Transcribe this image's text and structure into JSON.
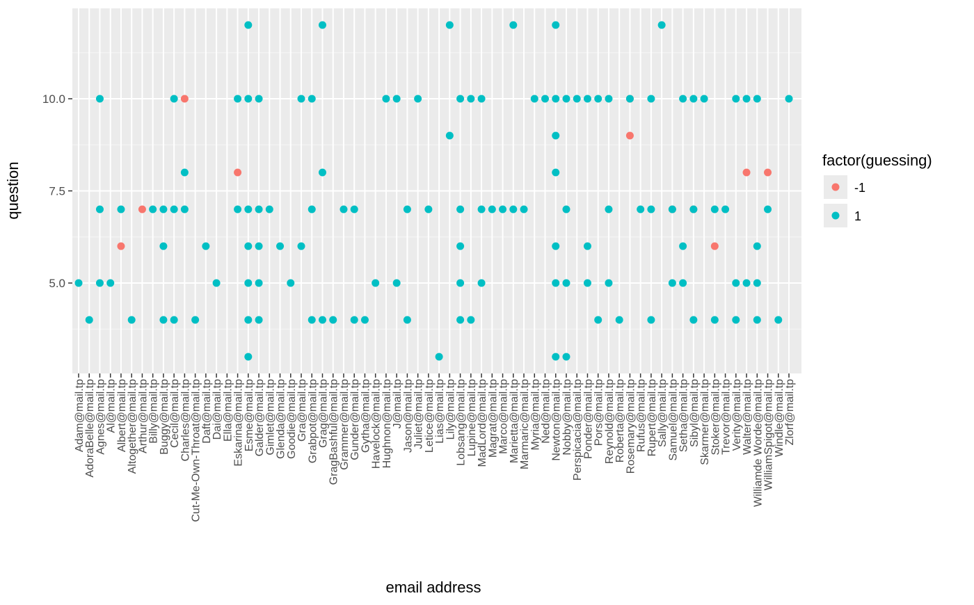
{
  "chart_data": {
    "type": "scatter",
    "xlabel": "email address",
    "ylabel": "question",
    "y_ticks": [
      "5.0",
      "7.5",
      "10.0"
    ],
    "ylim": [
      2.5,
      12.5
    ],
    "grid": true,
    "legend": {
      "title": "factor(guessing)",
      "position": "right",
      "entries": [
        {
          "label": "-1",
          "color": "#F8766D"
        },
        {
          "label": "1",
          "color": "#00BFC4"
        }
      ]
    },
    "categories": [
      "Adam@mail.tp",
      "AdoraBelle@mail.tp",
      "Agnes@mail.tp",
      "Al@mail.tp",
      "Albert@mail.tp",
      "Altogether@mail.tp",
      "Arthur@mail.tp",
      "Billy@mail.tp",
      "Buggy@mail.tp",
      "Cecil@mail.tp",
      "Charles@mail.tp",
      "Cut-Me-Own-Throat@mail.tp",
      "Daft@mail.tp",
      "Dai@mail.tp",
      "Ella@mail.tp",
      "Eskarina@mail.tp",
      "Esme@mail.tp",
      "Galder@mail.tp",
      "Gimlet@mail.tp",
      "Glenda@mail.tp",
      "Goodie@mail.tp",
      "Gra@mail.tp",
      "Grabpot@mail.tp",
      "Grag@mail.tp",
      "GragBashful@mail.tp",
      "Grammer@mail.tp",
      "Gunder@mail.tp",
      "Gytha@mail.tp",
      "Havelock@mail.tp",
      "Hughnon@mail.tp",
      "J@mail.tp",
      "Jason@mail.tp",
      "Juliet@mail.tp",
      "Letice@mail.tp",
      "Lias@mail.tp",
      "Lily@mail.tp",
      "Lobsang@mail.tp",
      "Lupine@mail.tp",
      "MadLord@mail.tp",
      "Magrat@mail.tp",
      "Marco@mail.tp",
      "Marietta@mail.tp",
      "Marmaric@mail.tp",
      "Myria@mail.tp",
      "Ned@mail.tp",
      "Newton@mail.tp",
      "Nobby@mail.tp",
      "Perspicacia@mail.tp",
      "Ponder@mail.tp",
      "Pors@mail.tp",
      "Reynold@mail.tp",
      "Roberta@mail.tp",
      "Rosemary@mail.tp",
      "Rufus@mail.tp",
      "Rupert@mail.tp",
      "Sally@mail.tp",
      "Samuel@mail.tp",
      "Setha@mail.tp",
      "Sibyl@mail.tp",
      "Skarmer@mail.tp",
      "Stoker@mail.tp",
      "Trevor@mail.tp",
      "Verity@mail.tp",
      "Walter@mail.tp",
      "Williamde Worde@mail.tp",
      "WilliamSpigot@mail.tp",
      "Windle@mail.tp",
      "Zlorf@mail.tp"
    ],
    "series": [
      {
        "name": "-1",
        "color": "#F8766D",
        "points": [
          {
            "x": "Albert@mail.tp",
            "y": 6
          },
          {
            "x": "Arthur@mail.tp",
            "y": 7
          },
          {
            "x": "Charles@mail.tp",
            "y": 10
          },
          {
            "x": "Eskarina@mail.tp",
            "y": 8
          },
          {
            "x": "Rosemary@mail.tp",
            "y": 10
          },
          {
            "x": "Rosemary@mail.tp",
            "y": 9
          },
          {
            "x": "Samuel@mail.tp",
            "y": 7
          },
          {
            "x": "Sibyl@mail.tp",
            "y": 7
          },
          {
            "x": "Stoker@mail.tp",
            "y": 6
          },
          {
            "x": "Walter@mail.tp",
            "y": 8
          },
          {
            "x": "WilliamSpigot@mail.tp",
            "y": 8
          }
        ]
      },
      {
        "name": "1",
        "color": "#00BFC4",
        "points": [
          {
            "x": "Adam@mail.tp",
            "y": 5
          },
          {
            "x": "AdoraBelle@mail.tp",
            "y": 4
          },
          {
            "x": "Agnes@mail.tp",
            "y": 10
          },
          {
            "x": "Agnes@mail.tp",
            "y": 7
          },
          {
            "x": "Agnes@mail.tp",
            "y": 5
          },
          {
            "x": "Al@mail.tp",
            "y": 5
          },
          {
            "x": "Albert@mail.tp",
            "y": 7
          },
          {
            "x": "Altogether@mail.tp",
            "y": 4
          },
          {
            "x": "Billy@mail.tp",
            "y": 7
          },
          {
            "x": "Buggy@mail.tp",
            "y": 7
          },
          {
            "x": "Buggy@mail.tp",
            "y": 6
          },
          {
            "x": "Buggy@mail.tp",
            "y": 4
          },
          {
            "x": "Cecil@mail.tp",
            "y": 10
          },
          {
            "x": "Cecil@mail.tp",
            "y": 7
          },
          {
            "x": "Cecil@mail.tp",
            "y": 4
          },
          {
            "x": "Charles@mail.tp",
            "y": 8
          },
          {
            "x": "Charles@mail.tp",
            "y": 7
          },
          {
            "x": "Cut-Me-Own-Throat@mail.tp",
            "y": 4
          },
          {
            "x": "Daft@mail.tp",
            "y": 6
          },
          {
            "x": "Dai@mail.tp",
            "y": 5
          },
          {
            "x": "Eskarina@mail.tp",
            "y": 10
          },
          {
            "x": "Eskarina@mail.tp",
            "y": 7
          },
          {
            "x": "Esme@mail.tp",
            "y": 12
          },
          {
            "x": "Esme@mail.tp",
            "y": 10
          },
          {
            "x": "Esme@mail.tp",
            "y": 7
          },
          {
            "x": "Esme@mail.tp",
            "y": 6
          },
          {
            "x": "Esme@mail.tp",
            "y": 5
          },
          {
            "x": "Esme@mail.tp",
            "y": 4
          },
          {
            "x": "Esme@mail.tp",
            "y": 3
          },
          {
            "x": "Galder@mail.tp",
            "y": 10
          },
          {
            "x": "Galder@mail.tp",
            "y": 7
          },
          {
            "x": "Galder@mail.tp",
            "y": 6
          },
          {
            "x": "Galder@mail.tp",
            "y": 5
          },
          {
            "x": "Galder@mail.tp",
            "y": 4
          },
          {
            "x": "Gimlet@mail.tp",
            "y": 7
          },
          {
            "x": "Glenda@mail.tp",
            "y": 6
          },
          {
            "x": "Goodie@mail.tp",
            "y": 5
          },
          {
            "x": "Gra@mail.tp",
            "y": 10
          },
          {
            "x": "Gra@mail.tp",
            "y": 6
          },
          {
            "x": "Grabpot@mail.tp",
            "y": 10
          },
          {
            "x": "Grabpot@mail.tp",
            "y": 7
          },
          {
            "x": "Grabpot@mail.tp",
            "y": 4
          },
          {
            "x": "Grag@mail.tp",
            "y": 12
          },
          {
            "x": "Grag@mail.tp",
            "y": 8
          },
          {
            "x": "Grag@mail.tp",
            "y": 4
          },
          {
            "x": "GragBashful@mail.tp",
            "y": 4
          },
          {
            "x": "Grammer@mail.tp",
            "y": 7
          },
          {
            "x": "Gunder@mail.tp",
            "y": 7
          },
          {
            "x": "Gunder@mail.tp",
            "y": 4
          },
          {
            "x": "Gytha@mail.tp",
            "y": 4
          },
          {
            "x": "Havelock@mail.tp",
            "y": 5
          },
          {
            "x": "Hughnon@mail.tp",
            "y": 10
          },
          {
            "x": "J@mail.tp",
            "y": 10
          },
          {
            "x": "J@mail.tp",
            "y": 5
          },
          {
            "x": "Jason@mail.tp",
            "y": 7
          },
          {
            "x": "Jason@mail.tp",
            "y": 4
          },
          {
            "x": "Juliet@mail.tp",
            "y": 10
          },
          {
            "x": "Letice@mail.tp",
            "y": 7
          },
          {
            "x": "Lias@mail.tp",
            "y": 3
          },
          {
            "x": "Lily@mail.tp",
            "y": 12
          },
          {
            "x": "Lily@mail.tp",
            "y": 9
          },
          {
            "x": "Lobsang@mail.tp",
            "y": 10
          },
          {
            "x": "Lobsang@mail.tp",
            "y": 7
          },
          {
            "x": "Lobsang@mail.tp",
            "y": 6
          },
          {
            "x": "Lobsang@mail.tp",
            "y": 5
          },
          {
            "x": "Lobsang@mail.tp",
            "y": 4
          },
          {
            "x": "Lupine@mail.tp",
            "y": 10
          },
          {
            "x": "Lupine@mail.tp",
            "y": 4
          },
          {
            "x": "MadLord@mail.tp",
            "y": 10
          },
          {
            "x": "MadLord@mail.tp",
            "y": 7
          },
          {
            "x": "MadLord@mail.tp",
            "y": 5
          },
          {
            "x": "Magrat@mail.tp",
            "y": 7
          },
          {
            "x": "Marco@mail.tp",
            "y": 7
          },
          {
            "x": "Marietta@mail.tp",
            "y": 12
          },
          {
            "x": "Marietta@mail.tp",
            "y": 7
          },
          {
            "x": "Marmaric@mail.tp",
            "y": 7
          },
          {
            "x": "Myria@mail.tp",
            "y": 10
          },
          {
            "x": "Ned@mail.tp",
            "y": 10
          },
          {
            "x": "Newton@mail.tp",
            "y": 10
          },
          {
            "x": "Newton@mail.tp",
            "y": 12
          },
          {
            "x": "Newton@mail.tp",
            "y": 9
          },
          {
            "x": "Newton@mail.tp",
            "y": 8
          },
          {
            "x": "Newton@mail.tp",
            "y": 6
          },
          {
            "x": "Newton@mail.tp",
            "y": 5
          },
          {
            "x": "Newton@mail.tp",
            "y": 3
          },
          {
            "x": "Nobby@mail.tp",
            "y": 10
          },
          {
            "x": "Nobby@mail.tp",
            "y": 7
          },
          {
            "x": "Nobby@mail.tp",
            "y": 5
          },
          {
            "x": "Nobby@mail.tp",
            "y": 3
          },
          {
            "x": "Perspicacia@mail.tp",
            "y": 10
          },
          {
            "x": "Ponder@mail.tp",
            "y": 10
          },
          {
            "x": "Ponder@mail.tp",
            "y": 6
          },
          {
            "x": "Ponder@mail.tp",
            "y": 5
          },
          {
            "x": "Pors@mail.tp",
            "y": 10
          },
          {
            "x": "Pors@mail.tp",
            "y": 4
          },
          {
            "x": "Reynold@mail.tp",
            "y": 10
          },
          {
            "x": "Reynold@mail.tp",
            "y": 7
          },
          {
            "x": "Reynold@mail.tp",
            "y": 5
          },
          {
            "x": "Roberta@mail.tp",
            "y": 4
          },
          {
            "x": "Rosemary@mail.tp",
            "y": 10
          },
          {
            "x": "Rufus@mail.tp",
            "y": 7
          },
          {
            "x": "Rupert@mail.tp",
            "y": 10
          },
          {
            "x": "Rupert@mail.tp",
            "y": 7
          },
          {
            "x": "Rupert@mail.tp",
            "y": 4
          },
          {
            "x": "Sally@mail.tp",
            "y": 12
          },
          {
            "x": "Samuel@mail.tp",
            "y": 7
          },
          {
            "x": "Samuel@mail.tp",
            "y": 5
          },
          {
            "x": "Setha@mail.tp",
            "y": 10
          },
          {
            "x": "Setha@mail.tp",
            "y": 6
          },
          {
            "x": "Setha@mail.tp",
            "y": 5
          },
          {
            "x": "Sibyl@mail.tp",
            "y": 10
          },
          {
            "x": "Sibyl@mail.tp",
            "y": 7
          },
          {
            "x": "Sibyl@mail.tp",
            "y": 4
          },
          {
            "x": "Skarmer@mail.tp",
            "y": 10
          },
          {
            "x": "Stoker@mail.tp",
            "y": 7
          },
          {
            "x": "Stoker@mail.tp",
            "y": 4
          },
          {
            "x": "Trevor@mail.tp",
            "y": 7
          },
          {
            "x": "Verity@mail.tp",
            "y": 10
          },
          {
            "x": "Verity@mail.tp",
            "y": 5
          },
          {
            "x": "Verity@mail.tp",
            "y": 4
          },
          {
            "x": "Walter@mail.tp",
            "y": 10
          },
          {
            "x": "Walter@mail.tp",
            "y": 5
          },
          {
            "x": "Williamde Worde@mail.tp",
            "y": 10
          },
          {
            "x": "Williamde Worde@mail.tp",
            "y": 6
          },
          {
            "x": "Williamde Worde@mail.tp",
            "y": 5
          },
          {
            "x": "Williamde Worde@mail.tp",
            "y": 4
          },
          {
            "x": "WilliamSpigot@mail.tp",
            "y": 7
          },
          {
            "x": "Windle@mail.tp",
            "y": 4
          },
          {
            "x": "Zlorf@mail.tp",
            "y": 10
          }
        ]
      }
    ]
  }
}
